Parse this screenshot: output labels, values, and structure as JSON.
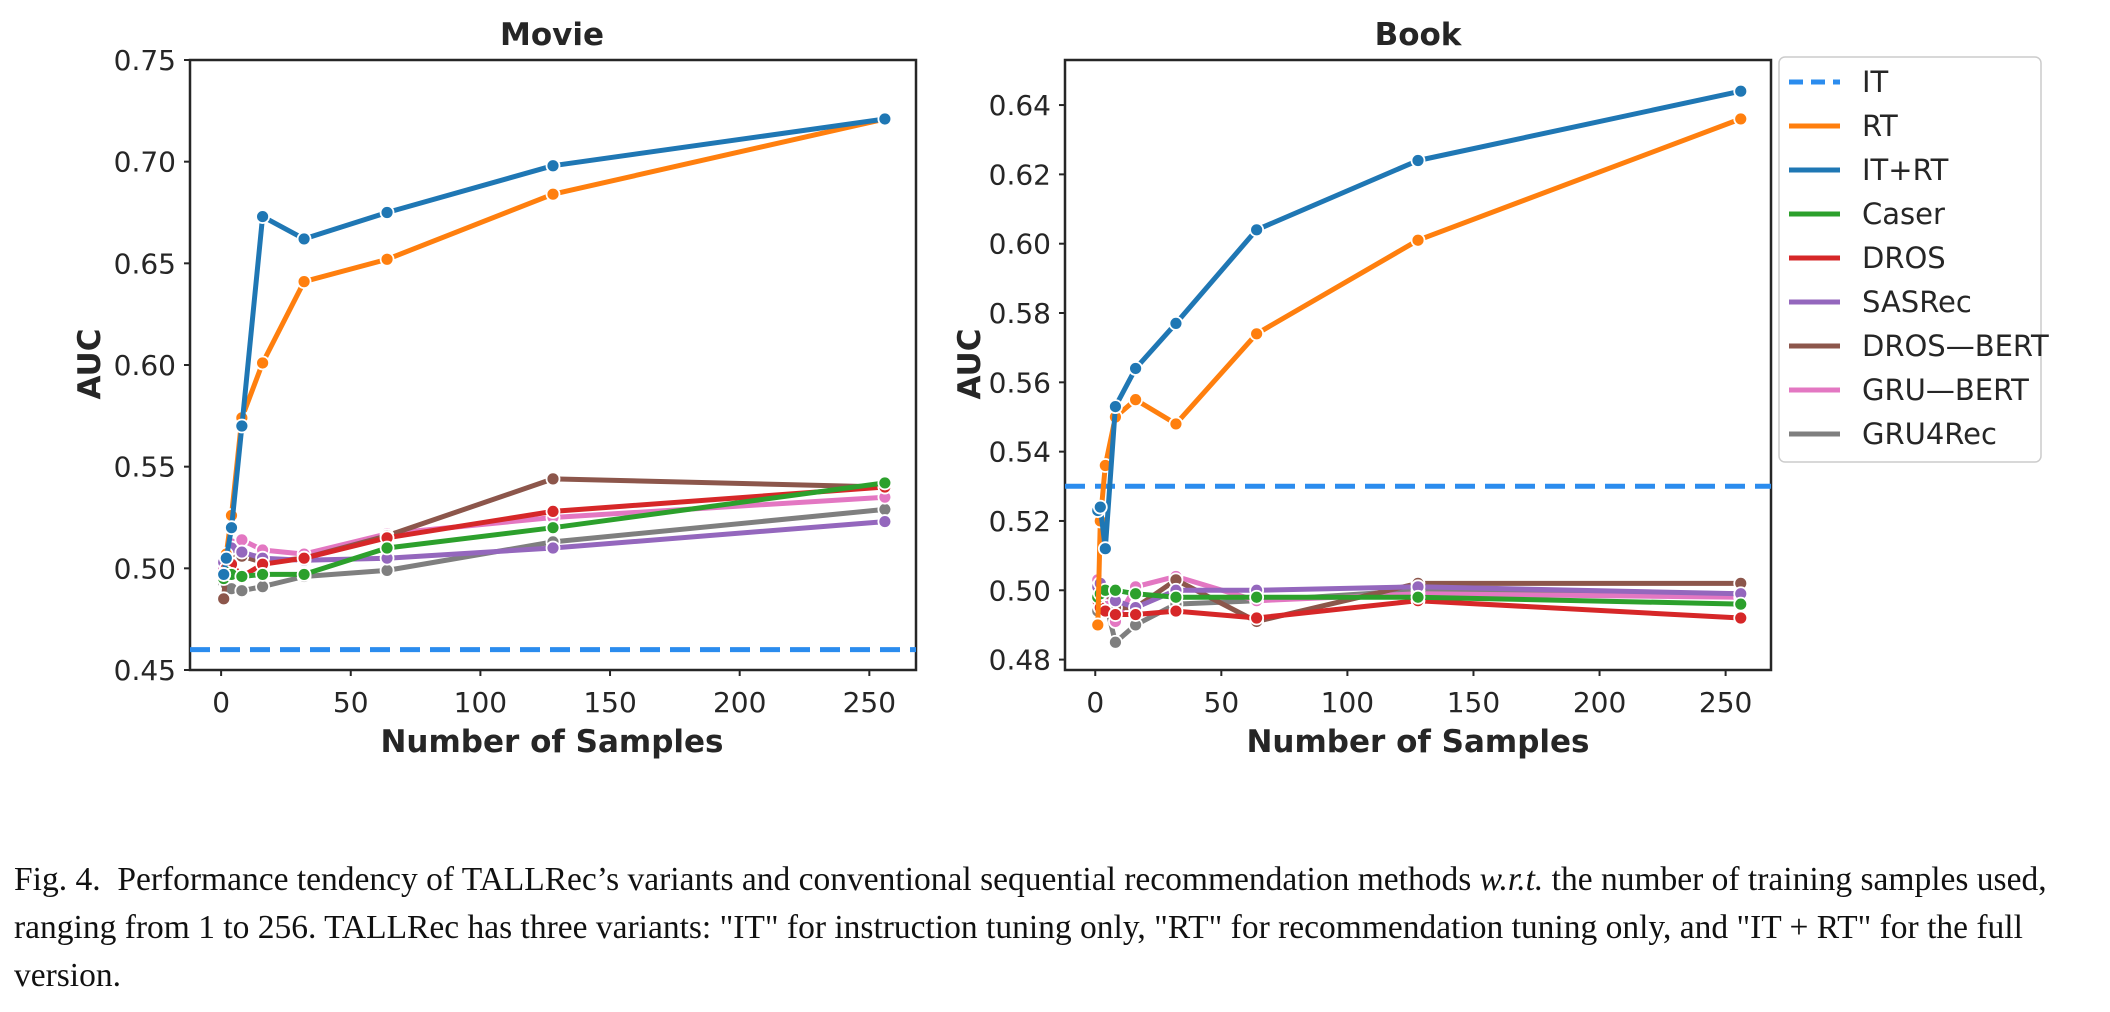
{
  "chart_data": [
    {
      "type": "line",
      "title": "Movie",
      "xlabel": "Number of Samples",
      "ylabel": "AUC",
      "xlim": [
        -12,
        268
      ],
      "ylim": [
        0.45,
        0.75
      ],
      "xticks": [
        0,
        50,
        100,
        150,
        200,
        250
      ],
      "yticks": [
        0.45,
        0.5,
        0.55,
        0.6,
        0.65,
        0.7,
        0.75
      ],
      "ytick_format": 2,
      "grid": false,
      "baseline": {
        "name": "IT",
        "y": 0.46,
        "style": "dashed"
      },
      "series": [
        {
          "name": "IT+RT",
          "x": [
            1,
            2,
            4,
            8,
            16,
            32,
            64,
            128,
            256
          ],
          "y": [
            0.497,
            0.505,
            0.52,
            0.57,
            0.673,
            0.662,
            0.675,
            0.698,
            0.721
          ]
        },
        {
          "name": "RT",
          "x": [
            1,
            2,
            4,
            8,
            16,
            32,
            64,
            128,
            256
          ],
          "y": [
            0.497,
            0.507,
            0.526,
            0.574,
            0.601,
            0.641,
            0.652,
            0.684,
            0.721
          ]
        },
        {
          "name": "Caser",
          "x": [
            1,
            2,
            4,
            8,
            16,
            32,
            64,
            128,
            256
          ],
          "y": [
            0.495,
            0.498,
            0.497,
            0.496,
            0.497,
            0.497,
            0.51,
            0.52,
            0.542
          ]
        },
        {
          "name": "DROS",
          "x": [
            1,
            2,
            4,
            8,
            16,
            32,
            64,
            128,
            256
          ],
          "y": [
            0.496,
            0.5,
            0.502,
            0.496,
            0.502,
            0.505,
            0.515,
            0.528,
            0.54
          ]
        },
        {
          "name": "SASRec",
          "x": [
            1,
            2,
            4,
            8,
            16,
            32,
            64,
            128,
            256
          ],
          "y": [
            0.503,
            0.507,
            0.51,
            0.508,
            0.505,
            0.504,
            0.505,
            0.51,
            0.523
          ]
        },
        {
          "name": "DROS—BERT",
          "x": [
            1,
            2,
            4,
            8,
            16,
            32,
            64,
            128,
            256
          ],
          "y": [
            0.485,
            0.502,
            0.508,
            0.506,
            0.503,
            0.505,
            0.516,
            0.544,
            0.54
          ]
        },
        {
          "name": "GRU—BERT",
          "x": [
            1,
            2,
            4,
            8,
            16,
            32,
            64,
            128,
            256
          ],
          "y": [
            0.5,
            0.505,
            0.512,
            0.514,
            0.509,
            0.507,
            0.517,
            0.525,
            0.535
          ]
        },
        {
          "name": "GRU4Rec",
          "x": [
            1,
            2,
            4,
            8,
            16,
            32,
            64,
            128,
            256
          ],
          "y": [
            0.493,
            0.492,
            0.49,
            0.489,
            0.491,
            0.496,
            0.499,
            0.513,
            0.529
          ]
        }
      ]
    },
    {
      "type": "line",
      "title": "Book",
      "xlabel": "Number of Samples",
      "ylabel": "AUC",
      "xlim": [
        -12,
        268
      ],
      "ylim": [
        0.477,
        0.653
      ],
      "xticks": [
        0,
        50,
        100,
        150,
        200,
        250
      ],
      "yticks": [
        0.48,
        0.5,
        0.52,
        0.54,
        0.56,
        0.58,
        0.6,
        0.62,
        0.64
      ],
      "ytick_format": 2,
      "grid": false,
      "baseline": {
        "name": "IT",
        "y": 0.53,
        "style": "dashed"
      },
      "series": [
        {
          "name": "IT+RT",
          "x": [
            1,
            2,
            4,
            8,
            16,
            32,
            64,
            128,
            256
          ],
          "y": [
            0.523,
            0.524,
            0.512,
            0.553,
            0.564,
            0.577,
            0.604,
            0.624,
            0.644
          ]
        },
        {
          "name": "RT",
          "x": [
            1,
            2,
            4,
            8,
            16,
            32,
            64,
            128,
            256
          ],
          "y": [
            0.49,
            0.52,
            0.536,
            0.55,
            0.555,
            0.548,
            0.574,
            0.601,
            0.636
          ]
        },
        {
          "name": "Caser",
          "x": [
            1,
            2,
            4,
            8,
            16,
            32,
            64,
            128,
            256
          ],
          "y": [
            0.498,
            0.499,
            0.5,
            0.5,
            0.499,
            0.498,
            0.498,
            0.498,
            0.496
          ]
        },
        {
          "name": "DROS",
          "x": [
            1,
            2,
            4,
            8,
            16,
            32,
            64,
            128,
            256
          ],
          "y": [
            0.497,
            0.495,
            0.494,
            0.493,
            0.493,
            0.494,
            0.492,
            0.497,
            0.492
          ]
        },
        {
          "name": "SASRec",
          "x": [
            1,
            2,
            4,
            8,
            16,
            32,
            64,
            128,
            256
          ],
          "y": [
            0.501,
            0.502,
            0.5,
            0.497,
            0.495,
            0.5,
            0.5,
            0.501,
            0.499
          ]
        },
        {
          "name": "DROS—BERT",
          "x": [
            1,
            2,
            4,
            8,
            16,
            32,
            64,
            128,
            256
          ],
          "y": [
            0.497,
            0.499,
            0.5,
            0.495,
            0.495,
            0.503,
            0.491,
            0.502,
            0.502
          ]
        },
        {
          "name": "GRU—BERT",
          "x": [
            1,
            2,
            4,
            8,
            16,
            32,
            64,
            128,
            256
          ],
          "y": [
            0.503,
            0.502,
            0.499,
            0.491,
            0.501,
            0.504,
            0.497,
            0.499,
            0.498
          ]
        },
        {
          "name": "GRU4Rec",
          "x": [
            1,
            2,
            4,
            8,
            16,
            32,
            64,
            128,
            256
          ],
          "y": [
            0.494,
            0.495,
            0.497,
            0.485,
            0.49,
            0.496,
            0.497,
            0.5,
            0.499
          ]
        }
      ]
    }
  ],
  "legend": {
    "placement": "right",
    "entries": [
      {
        "name": "IT",
        "color": "#2b8cee",
        "style": "dashed"
      },
      {
        "name": "RT",
        "color": "#ff7f0e",
        "style": "solid"
      },
      {
        "name": "IT+RT",
        "color": "#1f77b4",
        "style": "solid"
      },
      {
        "name": "Caser",
        "color": "#2ca02c",
        "style": "solid"
      },
      {
        "name": "DROS",
        "color": "#d62728",
        "style": "solid"
      },
      {
        "name": "SASRec",
        "color": "#9467bd",
        "style": "solid"
      },
      {
        "name": "DROS—BERT",
        "color": "#8c564b",
        "style": "solid"
      },
      {
        "name": "GRU—BERT",
        "color": "#e377c2",
        "style": "solid"
      },
      {
        "name": "GRU4Rec",
        "color": "#7f7f7f",
        "style": "solid"
      }
    ]
  },
  "caption": {
    "fig_label": "Fig. 4.",
    "text_before_italic": "Performance tendency of TALLRec’s variants and conventional sequential recommendation methods ",
    "italic": "w.r.t.",
    "text_after_italic": " the number of training samples used, ranging from 1 to 256. TALLRec has three variants: \"IT\" for instruction tuning only, \"RT\" for recommendation tuning only, and \"IT + RT\" for the full version."
  }
}
